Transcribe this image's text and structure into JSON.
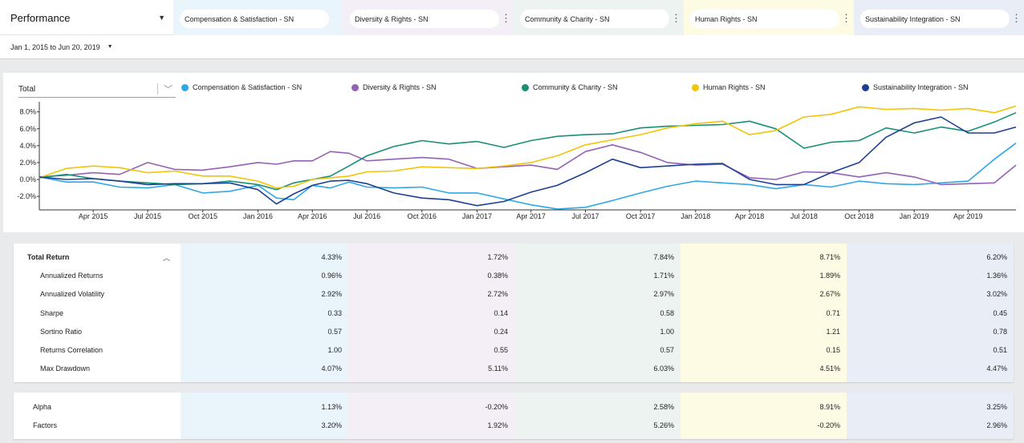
{
  "header": {
    "view_label": "Performance",
    "date_range": "Jan 1, 2015 to Jun 20, 2019"
  },
  "strategies": [
    {
      "name": "Compensation & Satisfaction - SN",
      "color": "#2ea8e6",
      "col_bg": "#eaf4fb"
    },
    {
      "name": "Diversity & Rights - SN",
      "color": "#9461b5",
      "col_bg": "#f4eff6"
    },
    {
      "name": "Community & Charity - SN",
      "color": "#1a8f78",
      "col_bg": "#ecf3f1"
    },
    {
      "name": "Human Rights - SN",
      "color": "#f2c40a",
      "col_bg": "#fdfbe4"
    },
    {
      "name": "Sustainability Integration - SN",
      "color": "#1c3f94",
      "col_bg": "#e8edf6"
    }
  ],
  "chart_metric": "Total",
  "chart_data": {
    "type": "line",
    "x_ticks": [
      "Apr 2015",
      "Jul 2015",
      "Oct 2015",
      "Jan 2016",
      "Apr 2016",
      "Jul 2016",
      "Oct 2016",
      "Jan 2017",
      "Apr 2017",
      "Jul 2017",
      "Oct 2017",
      "Jan 2018",
      "Apr 2018",
      "Jul 2018",
      "Oct 2018",
      "Jan 2019",
      "Apr 2019"
    ],
    "y_ticks": [
      "8.0%",
      "6.0%",
      "4.0%",
      "2.0%",
      "0.0%",
      "-2.0%"
    ],
    "y_tick_values": [
      8,
      6,
      4,
      2,
      0,
      -2
    ],
    "ylim": [
      -3.6,
      9.2
    ],
    "x_dates": [
      "2015-01-01",
      "2015-02-15",
      "2015-04-01",
      "2015-05-15",
      "2015-07-01",
      "2015-08-15",
      "2015-10-01",
      "2015-11-15",
      "2016-01-01",
      "2016-02-01",
      "2016-03-01",
      "2016-04-01",
      "2016-05-01",
      "2016-06-01",
      "2016-07-01",
      "2016-08-15",
      "2016-10-01",
      "2016-11-15",
      "2017-01-01",
      "2017-02-15",
      "2017-04-01",
      "2017-05-15",
      "2017-07-01",
      "2017-08-15",
      "2017-10-01",
      "2017-11-15",
      "2018-01-01",
      "2018-02-15",
      "2018-04-01",
      "2018-05-15",
      "2018-07-01",
      "2018-08-15",
      "2018-10-01",
      "2018-11-15",
      "2019-01-01",
      "2019-02-15",
      "2019-04-01",
      "2019-05-15",
      "2019-06-20"
    ],
    "series": [
      {
        "name": "Compensation & Satisfaction - SN",
        "values": [
          0.3,
          -0.3,
          -0.3,
          -0.9,
          -1.0,
          -0.6,
          -1.6,
          -1.4,
          -0.7,
          -2.2,
          -2.4,
          -0.7,
          -1.0,
          -0.3,
          -0.9,
          -1.0,
          -0.9,
          -1.6,
          -1.6,
          -2.3,
          -3.0,
          -3.5,
          -3.3,
          -2.5,
          -1.6,
          -0.8,
          -0.2,
          -0.4,
          -0.6,
          -1.1,
          -0.6,
          -0.9,
          -0.2,
          -0.5,
          -0.6,
          -0.4,
          -0.2,
          2.4,
          4.3
        ]
      },
      {
        "name": "Diversity & Rights - SN",
        "values": [
          0.3,
          0.5,
          0.8,
          0.6,
          2.0,
          1.2,
          1.1,
          1.5,
          2.0,
          1.8,
          2.2,
          2.2,
          3.3,
          3.1,
          2.2,
          2.4,
          2.6,
          2.4,
          1.3,
          1.5,
          1.7,
          1.2,
          3.3,
          4.1,
          3.2,
          2.0,
          1.7,
          1.8,
          0.2,
          0.0,
          0.9,
          0.8,
          0.3,
          0.8,
          0.3,
          -0.6,
          -0.5,
          -0.4,
          1.7
        ]
      },
      {
        "name": "Community & Charity - SN",
        "values": [
          0.2,
          0.6,
          0.1,
          -0.2,
          -0.4,
          -0.6,
          -0.5,
          -0.2,
          -0.6,
          -1.2,
          -0.4,
          0.0,
          0.4,
          1.6,
          2.8,
          3.9,
          4.6,
          4.2,
          4.5,
          3.8,
          4.6,
          5.1,
          5.3,
          5.4,
          6.1,
          6.3,
          6.4,
          6.5,
          6.9,
          6.0,
          3.7,
          4.4,
          4.6,
          6.1,
          5.5,
          6.2,
          5.7,
          6.8,
          7.9
        ]
      },
      {
        "name": "Human Rights - SN",
        "values": [
          0.2,
          1.3,
          1.6,
          1.4,
          0.8,
          1.0,
          0.4,
          0.4,
          -0.2,
          -1.0,
          -0.8,
          0.0,
          0.2,
          0.4,
          0.9,
          1.0,
          1.5,
          1.4,
          1.3,
          1.6,
          2.0,
          2.8,
          4.1,
          4.7,
          5.3,
          6.1,
          6.6,
          6.9,
          5.3,
          5.8,
          7.4,
          7.7,
          8.6,
          8.3,
          8.4,
          8.2,
          8.4,
          7.9,
          8.7
        ]
      },
      {
        "name": "Sustainability Integration - SN",
        "values": [
          0.3,
          0.0,
          0.1,
          -0.2,
          -0.6,
          -0.5,
          -0.5,
          -0.4,
          -1.2,
          -2.9,
          -1.7,
          -0.7,
          -0.2,
          -0.1,
          -0.5,
          -1.6,
          -2.2,
          -2.4,
          -3.1,
          -2.6,
          -1.5,
          -0.7,
          0.8,
          2.4,
          1.4,
          1.6,
          1.8,
          1.9,
          0.0,
          -0.6,
          -0.6,
          0.8,
          2.0,
          5.0,
          6.7,
          7.4,
          5.5,
          5.5,
          6.2
        ]
      }
    ]
  },
  "returns_table": {
    "rows": [
      {
        "label": "Total Return",
        "bold": true,
        "values": [
          "4.33%",
          "1.72%",
          "7.84%",
          "8.71%",
          "6.20%"
        ]
      },
      {
        "label": "Annualized Returns",
        "values": [
          "0.96%",
          "0.38%",
          "1.71%",
          "1.89%",
          "1.36%"
        ]
      },
      {
        "label": "Annualized Volatility",
        "values": [
          "2.92%",
          "2.72%",
          "2.97%",
          "2.67%",
          "3.02%"
        ]
      },
      {
        "label": "Sharpe",
        "values": [
          "0.33",
          "0.14",
          "0.58",
          "0.71",
          "0.45"
        ]
      },
      {
        "label": "Sortino Ratio",
        "values": [
          "0.57",
          "0.24",
          "1.00",
          "1.21",
          "0.78"
        ]
      },
      {
        "label": "Returns Correlation",
        "values": [
          "1.00",
          "0.55",
          "0.57",
          "0.15",
          "0.51"
        ]
      },
      {
        "label": "Max Drawdown",
        "values": [
          "4.07%",
          "5.11%",
          "6.03%",
          "4.51%",
          "4.47%"
        ]
      }
    ]
  },
  "factor_table": {
    "rows": [
      {
        "label": "Alpha",
        "values": [
          "1.13%",
          "-0.20%",
          "2.58%",
          "8.91%",
          "3.25%"
        ]
      },
      {
        "label": "Factors",
        "values": [
          "3.20%",
          "1.92%",
          "5.26%",
          "-0.20%",
          "2.96%"
        ]
      }
    ]
  }
}
